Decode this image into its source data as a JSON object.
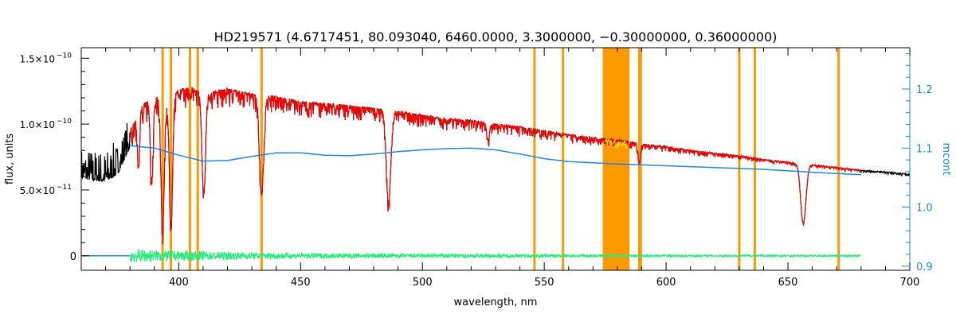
{
  "chart_data": {
    "type": "line",
    "title": "HD219571   (4.6717451, 80.093040, 6460.0000, 3.3000000, −0.30000000, 0.36000000)",
    "xlabel": "wavelength, nm",
    "ylabel": "flux, units",
    "y2label": "mcont",
    "xlim": [
      360,
      700
    ],
    "ylim": [
      -1.1e-11,
      1.58e-10
    ],
    "y2lim": [
      0.893,
      1.27
    ],
    "x_ticks": [
      {
        "value": 400,
        "label": "400"
      },
      {
        "value": 450,
        "label": "450"
      },
      {
        "value": 500,
        "label": "500"
      },
      {
        "value": 550,
        "label": "550"
      },
      {
        "value": 600,
        "label": "600"
      },
      {
        "value": 650,
        "label": "650"
      },
      {
        "value": 700,
        "label": "700"
      }
    ],
    "y_ticks": [
      {
        "value": 0,
        "base": "0",
        "exp": ""
      },
      {
        "value": 5e-11,
        "base": "5.0×10",
        "exp": "−11"
      },
      {
        "value": 1e-10,
        "base": "1.0×10",
        "exp": "−10"
      },
      {
        "value": 1.5e-10,
        "base": "1.5×10",
        "exp": "−10"
      }
    ],
    "y2_ticks": [
      {
        "value": 0.9,
        "label": "0.9"
      },
      {
        "value": 1.0,
        "label": "1.0"
      },
      {
        "value": 1.1,
        "label": "1.1"
      },
      {
        "value": 1.2,
        "label": "1.2"
      }
    ],
    "masked_lines": [
      393.4,
      396.8,
      404.6,
      407.8,
      434.0,
      546.0,
      557.7,
      589.0,
      589.6,
      630.0,
      636.4,
      670.8
    ],
    "masked_band": [
      574.0,
      585.0
    ],
    "series": [
      {
        "role": "observed",
        "color": "#000000",
        "envelope": [
          [
            360,
            7.2e-11
          ],
          [
            365,
            7e-11
          ],
          [
            370,
            6.9e-11
          ],
          [
            375,
            7.5e-11
          ],
          [
            380,
            9.5e-11
          ],
          [
            385,
            1.14e-10
          ],
          [
            390,
            1.22e-10
          ],
          [
            395,
            1.18e-10
          ],
          [
            400,
            1.26e-10
          ],
          [
            405,
            1.28e-10
          ],
          [
            410,
            1.24e-10
          ],
          [
            415,
            1.25e-10
          ],
          [
            420,
            1.27e-10
          ],
          [
            430,
            1.23e-10
          ],
          [
            440,
            1.21e-10
          ],
          [
            450,
            1.17e-10
          ],
          [
            460,
            1.16e-10
          ],
          [
            470,
            1.14e-10
          ],
          [
            480,
            1.12e-10
          ],
          [
            490,
            1.1e-10
          ],
          [
            500,
            1.07e-10
          ],
          [
            510,
            1.04e-10
          ],
          [
            520,
            1.03e-10
          ],
          [
            530,
            1e-10
          ],
          [
            540,
            9.8e-11
          ],
          [
            550,
            9.5e-11
          ],
          [
            560,
            9.2e-11
          ],
          [
            570,
            9e-11
          ],
          [
            580,
            8.8e-11
          ],
          [
            590,
            8.5e-11
          ],
          [
            600,
            8.3e-11
          ],
          [
            610,
            8e-11
          ],
          [
            620,
            7.8e-11
          ],
          [
            630,
            7.6e-11
          ],
          [
            640,
            7.3e-11
          ],
          [
            650,
            7.1e-11
          ],
          [
            660,
            6.9e-11
          ],
          [
            670,
            6.7e-11
          ],
          [
            680,
            6.5e-11
          ],
          [
            690,
            6.4e-11
          ],
          [
            700,
            6.2e-11
          ]
        ],
        "absorption_lines": [
          {
            "x": 383.5,
            "depth": 4e-11,
            "width": 0.6
          },
          {
            "x": 388.9,
            "depth": 6.5e-11,
            "width": 0.8
          },
          {
            "x": 393.4,
            "depth": 1e-10,
            "width": 0.9
          },
          {
            "x": 396.8,
            "depth": 9.5e-11,
            "width": 0.9
          },
          {
            "x": 410.2,
            "depth": 7.5e-11,
            "width": 1.0
          },
          {
            "x": 434.0,
            "depth": 7.6e-11,
            "width": 1.2
          },
          {
            "x": 486.1,
            "depth": 7e-11,
            "width": 1.3
          },
          {
            "x": 527.0,
            "depth": 1.2e-11,
            "width": 0.8
          },
          {
            "x": 589.0,
            "depth": 1.5e-11,
            "width": 0.7
          },
          {
            "x": 656.3,
            "depth": 4.5e-11,
            "width": 1.5
          }
        ]
      },
      {
        "role": "model",
        "color": "#ff0000",
        "range": [
          380,
          680
        ]
      },
      {
        "role": "continuum",
        "color": "#1f86e0",
        "axis": "right",
        "points": [
          [
            380,
            1.104
          ],
          [
            390,
            1.1
          ],
          [
            400,
            1.088
          ],
          [
            410,
            1.078
          ],
          [
            420,
            1.079
          ],
          [
            430,
            1.086
          ],
          [
            440,
            1.092
          ],
          [
            450,
            1.092
          ],
          [
            460,
            1.088
          ],
          [
            470,
            1.087
          ],
          [
            480,
            1.09
          ],
          [
            490,
            1.094
          ],
          [
            500,
            1.097
          ],
          [
            510,
            1.099
          ],
          [
            520,
            1.1
          ],
          [
            530,
            1.097
          ],
          [
            540,
            1.09
          ],
          [
            550,
            1.082
          ],
          [
            560,
            1.077
          ],
          [
            570,
            1.075
          ],
          [
            580,
            1.073
          ],
          [
            600,
            1.07
          ],
          [
            620,
            1.067
          ],
          [
            640,
            1.064
          ],
          [
            660,
            1.059
          ],
          [
            680,
            1.055
          ]
        ]
      },
      {
        "role": "residuals",
        "color": "#22ee77",
        "range": [
          380,
          680
        ],
        "baseline": 0,
        "noise": [
          [
            380,
            5.5e-12
          ],
          [
            390,
            4.5e-12
          ],
          [
            400,
            4e-12
          ],
          [
            420,
            3e-12
          ],
          [
            440,
            2.4e-12
          ],
          [
            460,
            2e-12
          ],
          [
            480,
            1.8e-12
          ],
          [
            500,
            1.7e-12
          ],
          [
            520,
            1.6e-12
          ],
          [
            540,
            1.4e-12
          ],
          [
            560,
            1.2e-12
          ],
          [
            580,
            1e-12
          ],
          [
            600,
            9e-13
          ],
          [
            620,
            8e-13
          ],
          [
            650,
            8e-13
          ],
          [
            680,
            7e-13
          ]
        ]
      },
      {
        "role": "residuals-zero",
        "color": "#1f86e0",
        "range": [
          360,
          380
        ],
        "value": 0
      }
    ],
    "colors": {
      "mask": "#ff9900",
      "right_axis": "#1f86e0",
      "flagged": "#ffee00"
    },
    "grid": false
  }
}
